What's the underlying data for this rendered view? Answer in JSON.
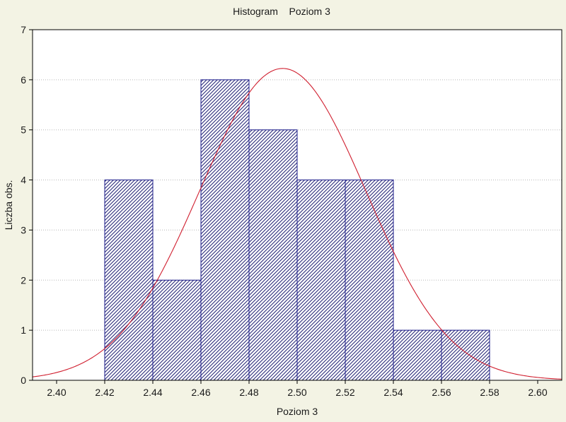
{
  "chart_data": {
    "type": "bar",
    "title": "Histogram    Poziom 3",
    "xlabel": "Poziom 3",
    "ylabel": "Liczba obs.",
    "xlim": [
      2.39,
      2.61
    ],
    "ylim": [
      0,
      7
    ],
    "x_ticks": [
      "2.40",
      "2.42",
      "2.44",
      "2.46",
      "2.48",
      "2.50",
      "2.52",
      "2.54",
      "2.56",
      "2.58",
      "2.60"
    ],
    "y_ticks": [
      "0",
      "1",
      "2",
      "3",
      "4",
      "5",
      "6",
      "7"
    ],
    "bins": [
      {
        "from": 2.42,
        "to": 2.44,
        "count": 4
      },
      {
        "from": 2.44,
        "to": 2.46,
        "count": 2
      },
      {
        "from": 2.46,
        "to": 2.48,
        "count": 6
      },
      {
        "from": 2.48,
        "to": 2.5,
        "count": 5
      },
      {
        "from": 2.5,
        "to": 2.52,
        "count": 4
      },
      {
        "from": 2.52,
        "to": 2.54,
        "count": 4
      },
      {
        "from": 2.54,
        "to": 2.56,
        "count": 1
      },
      {
        "from": 2.56,
        "to": 2.58,
        "count": 1
      }
    ],
    "normal_curve": {
      "mean": 2.494,
      "sd": 0.0346,
      "n": 27,
      "bin_width": 0.02
    },
    "grid": "horizontal-dotted",
    "colors": {
      "bar_edge": "#1c1c8c",
      "bar_hatch": "#2a2a7a",
      "bar_fill": "#ffffff",
      "curve": "#d01f2f",
      "plot_bg": "#ffffff",
      "page_bg": "#f3f3e4",
      "grid": "#b8b8b8"
    }
  }
}
